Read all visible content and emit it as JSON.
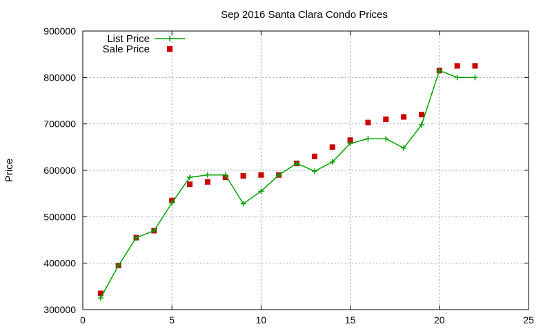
{
  "chart_data": {
    "type": "line",
    "title": "Sep 2016 Santa Clara Condo Prices",
    "xlabel": "",
    "ylabel": "Price",
    "xlim": [
      0,
      25
    ],
    "ylim": [
      300000,
      900000
    ],
    "xticks": [
      0,
      5,
      10,
      15,
      20,
      25
    ],
    "yticks": [
      300000,
      400000,
      500000,
      600000,
      700000,
      800000,
      900000
    ],
    "grid": true,
    "legend_position": "top-left",
    "series": [
      {
        "name": "List Price",
        "style": "line-with-plus-markers",
        "color": "#00a000",
        "x": [
          1,
          2,
          3,
          4,
          5,
          6,
          7,
          8,
          9,
          10,
          11,
          12,
          13,
          14,
          15,
          16,
          17,
          18,
          19,
          20,
          21,
          22
        ],
        "y": [
          325000,
          395000,
          455000,
          470000,
          530000,
          585000,
          590000,
          590000,
          528000,
          555000,
          590000,
          615000,
          598000,
          618000,
          658000,
          668000,
          668000,
          648000,
          698000,
          815000,
          800000,
          800000
        ]
      },
      {
        "name": "Sale Price",
        "style": "square-markers",
        "color": "#cc0000",
        "x": [
          1,
          2,
          3,
          4,
          5,
          6,
          7,
          8,
          9,
          10,
          11,
          12,
          13,
          14,
          15,
          16,
          17,
          18,
          19,
          20,
          21,
          22
        ],
        "y": [
          335000,
          395000,
          455000,
          470000,
          535000,
          570000,
          575000,
          585000,
          588000,
          590000,
          590000,
          615000,
          630000,
          650000,
          665000,
          703000,
          710000,
          715000,
          720000,
          815000,
          825000,
          825000
        ]
      }
    ]
  }
}
